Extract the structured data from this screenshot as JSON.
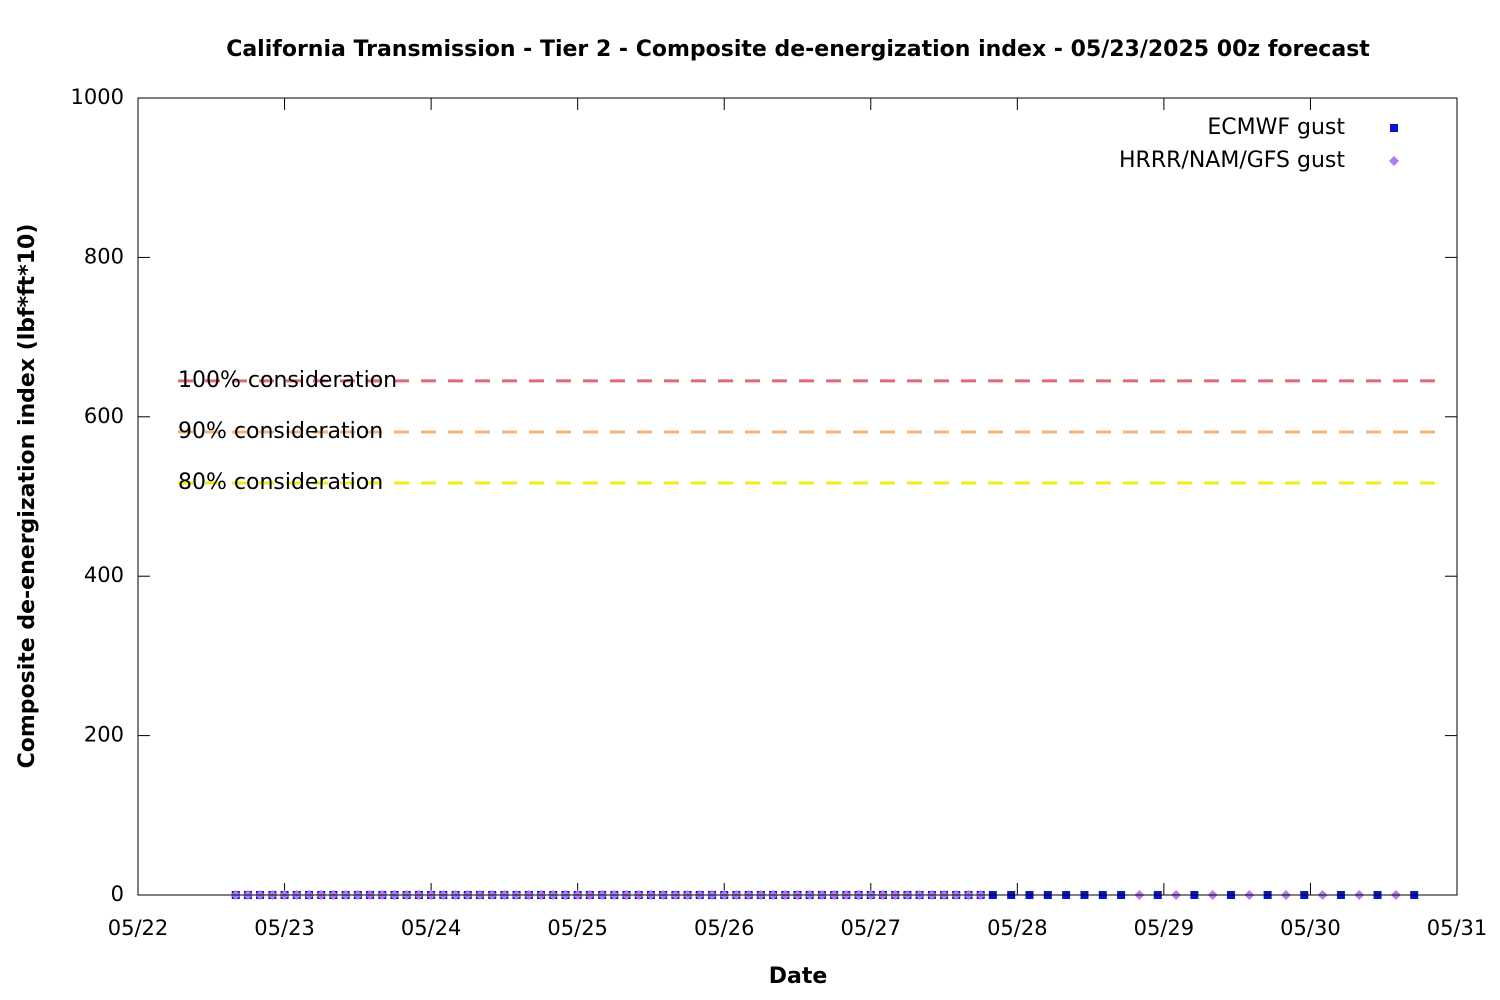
{
  "chart_data": {
    "type": "scatter",
    "title": "California Transmission - Tier 2 - Composite de-energization index - 05/23/2025 00z forecast",
    "xlabel": "Date",
    "ylabel": "Composite de-energization index (lbf*ft*10)",
    "xlim": [
      22,
      31
    ],
    "xticks": [
      {
        "value": 22,
        "label": "05/22"
      },
      {
        "value": 23,
        "label": "05/23"
      },
      {
        "value": 24,
        "label": "05/24"
      },
      {
        "value": 25,
        "label": "05/25"
      },
      {
        "value": 26,
        "label": "05/26"
      },
      {
        "value": 27,
        "label": "05/27"
      },
      {
        "value": 28,
        "label": "05/28"
      },
      {
        "value": 29,
        "label": "05/29"
      },
      {
        "value": 30,
        "label": "05/30"
      },
      {
        "value": 31,
        "label": "05/31"
      }
    ],
    "ylim": [
      0,
      1000
    ],
    "yticks": [
      0,
      200,
      400,
      600,
      800,
      1000
    ],
    "legend": "top-right",
    "reference_lines": [
      {
        "label": "100% consideration",
        "value": 645,
        "color": "#e06a78"
      },
      {
        "label": "90% consideration",
        "value": 581,
        "color": "#f5b37a"
      },
      {
        "label": "80% consideration",
        "value": 517,
        "color": "#eeee10"
      }
    ],
    "series": [
      {
        "name": "ECMWF gust",
        "color": "#0a14c8",
        "marker": "square",
        "x": [
          22.667,
          22.75,
          22.833,
          22.917,
          23.0,
          23.083,
          23.167,
          23.25,
          23.333,
          23.417,
          23.5,
          23.583,
          23.667,
          23.75,
          23.833,
          23.917,
          24.0,
          24.083,
          24.167,
          24.25,
          24.333,
          24.417,
          24.5,
          24.583,
          24.667,
          24.75,
          24.833,
          24.917,
          25.0,
          25.083,
          25.167,
          25.25,
          25.333,
          25.417,
          25.5,
          25.583,
          25.667,
          25.75,
          25.833,
          25.917,
          26.0,
          26.083,
          26.167,
          26.25,
          26.333,
          26.417,
          26.5,
          26.583,
          26.667,
          26.75,
          26.833,
          26.917,
          27.0,
          27.083,
          27.167,
          27.25,
          27.333,
          27.417,
          27.5,
          27.583,
          27.667,
          27.75,
          27.833,
          27.958,
          28.083,
          28.208,
          28.333,
          28.458,
          28.583,
          28.708,
          28.958,
          29.208,
          29.458,
          29.708,
          29.958,
          30.208,
          30.458,
          30.708
        ],
        "values": [
          0,
          0,
          0,
          0,
          0,
          0,
          0,
          0,
          0,
          0,
          0,
          0,
          0,
          0,
          0,
          0,
          0,
          0,
          0,
          0,
          0,
          0,
          0,
          0,
          0,
          0,
          0,
          0,
          0,
          0,
          0,
          0,
          0,
          0,
          0,
          0,
          0,
          0,
          0,
          0,
          0,
          0,
          0,
          0,
          0,
          0,
          0,
          0,
          0,
          0,
          0,
          0,
          0,
          0,
          0,
          0,
          0,
          0,
          0,
          0,
          0,
          0,
          0,
          0,
          0,
          0,
          0,
          0,
          0,
          0,
          0,
          0,
          0,
          0,
          0,
          0,
          0,
          0
        ]
      },
      {
        "name": "HRRR/NAM/GFS gust",
        "color": "#b27cf0",
        "marker": "diamond",
        "x": [
          22.667,
          22.75,
          22.833,
          22.917,
          23.0,
          23.083,
          23.167,
          23.25,
          23.333,
          23.417,
          23.5,
          23.583,
          23.667,
          23.75,
          23.833,
          23.917,
          24.0,
          24.083,
          24.167,
          24.25,
          24.333,
          24.417,
          24.5,
          24.583,
          24.667,
          24.75,
          24.833,
          24.917,
          25.0,
          25.083,
          25.167,
          25.25,
          25.333,
          25.417,
          25.5,
          25.583,
          25.667,
          25.75,
          25.833,
          25.917,
          26.0,
          26.083,
          26.167,
          26.25,
          26.333,
          26.417,
          26.5,
          26.583,
          26.667,
          26.75,
          26.833,
          26.917,
          27.0,
          27.083,
          27.167,
          27.25,
          27.333,
          27.417,
          27.5,
          27.583,
          27.667,
          27.75,
          28.833,
          29.083,
          29.333,
          29.583,
          29.833,
          30.083,
          30.333,
          30.583
        ],
        "values": [
          0,
          0,
          0,
          0,
          0,
          0,
          0,
          0,
          0,
          0,
          0,
          0,
          0,
          0,
          0,
          0,
          0,
          0,
          0,
          0,
          0,
          0,
          0,
          0,
          0,
          0,
          0,
          0,
          0,
          0,
          0,
          0,
          0,
          0,
          0,
          0,
          0,
          0,
          0,
          0,
          0,
          0,
          0,
          0,
          0,
          0,
          0,
          0,
          0,
          0,
          0,
          0,
          0,
          0,
          0,
          0,
          0,
          0,
          0,
          0,
          0,
          0,
          0,
          0,
          0,
          0,
          0,
          0,
          0,
          0
        ]
      }
    ]
  }
}
